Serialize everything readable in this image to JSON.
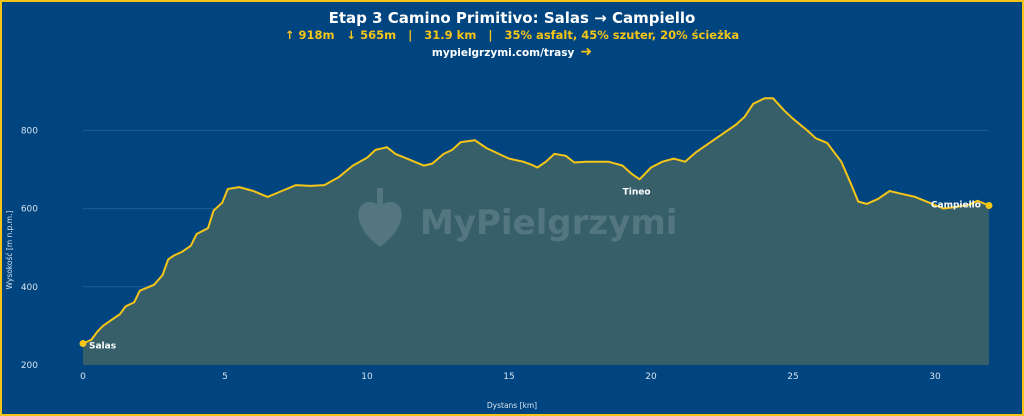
{
  "header": {
    "title": "Etap 3 Camino Primitivo: Salas → Campiello",
    "stats": "↑ 918m   ↓ 565m   |   31.9 km   |   35% asfalt, 45% szuter, 20% ścieżka",
    "link": "mypielgrzymi.com/trasy",
    "link_icon": "arrow-right-icon"
  },
  "watermark": "MyPielgrzymi",
  "colors": {
    "background": "#00457f",
    "line": "#f5c518",
    "fill": "#365f6a",
    "border": "#f5c518"
  },
  "chart_data": {
    "type": "area",
    "title": "Etap 3 Camino Primitivo: Salas → Campiello",
    "xlabel": "Dystans [km]",
    "ylabel": "Wysokość [m n.p.m.]",
    "xlim": [
      0,
      31.9
    ],
    "ylim": [
      200,
      900
    ],
    "xticks": [
      0,
      5,
      10,
      15,
      20,
      25,
      30
    ],
    "yticks": [
      200,
      400,
      600,
      800
    ],
    "grid": true,
    "x": [
      0,
      0.3,
      0.5,
      0.7,
      1,
      1.3,
      1.5,
      1.8,
      2,
      2.5,
      2.8,
      3,
      3.2,
      3.5,
      3.8,
      4,
      4.4,
      4.6,
      4.9,
      5.1,
      5.5,
      6,
      6.5,
      7,
      7.5,
      8,
      8.5,
      9,
      9.5,
      10,
      10.3,
      10.7,
      11,
      11.5,
      12,
      12.3,
      12.7,
      13,
      13.3,
      13.8,
      14.2,
      14.7,
      15,
      15.5,
      15.8,
      16,
      16.3,
      16.6,
      17,
      17.3,
      17.7,
      18.5,
      19,
      19.3,
      19.6,
      19.8,
      20,
      20.4,
      20.8,
      21.2,
      21.6,
      22,
      22.5,
      23,
      23.3,
      23.6,
      24,
      24.3,
      24.7,
      25,
      25.5,
      25.8,
      26.2,
      26.7,
      27,
      27.3,
      27.6,
      28,
      28.4,
      28.8,
      29.3,
      29.8,
      30.3,
      30.8,
      31.2,
      31.5,
      31.9
    ],
    "y": [
      255,
      265,
      285,
      300,
      315,
      330,
      350,
      360,
      390,
      405,
      430,
      470,
      480,
      490,
      505,
      535,
      550,
      595,
      615,
      650,
      655,
      645,
      630,
      645,
      660,
      658,
      660,
      680,
      710,
      730,
      750,
      757,
      740,
      725,
      710,
      715,
      740,
      750,
      770,
      775,
      755,
      738,
      728,
      720,
      712,
      705,
      720,
      740,
      735,
      718,
      720,
      720,
      710,
      690,
      675,
      690,
      705,
      720,
      728,
      720,
      745,
      765,
      790,
      815,
      835,
      868,
      882,
      882,
      850,
      830,
      800,
      780,
      768,
      720,
      670,
      618,
      612,
      625,
      645,
      638,
      630,
      615,
      600,
      605,
      610,
      620,
      608
    ],
    "annotations": [
      {
        "label": "Salas",
        "x": 0,
        "y": 255
      },
      {
        "label": "Tineo",
        "x": 19.6,
        "y": 675
      },
      {
        "label": "Campiello",
        "x": 31.9,
        "y": 608
      }
    ]
  }
}
